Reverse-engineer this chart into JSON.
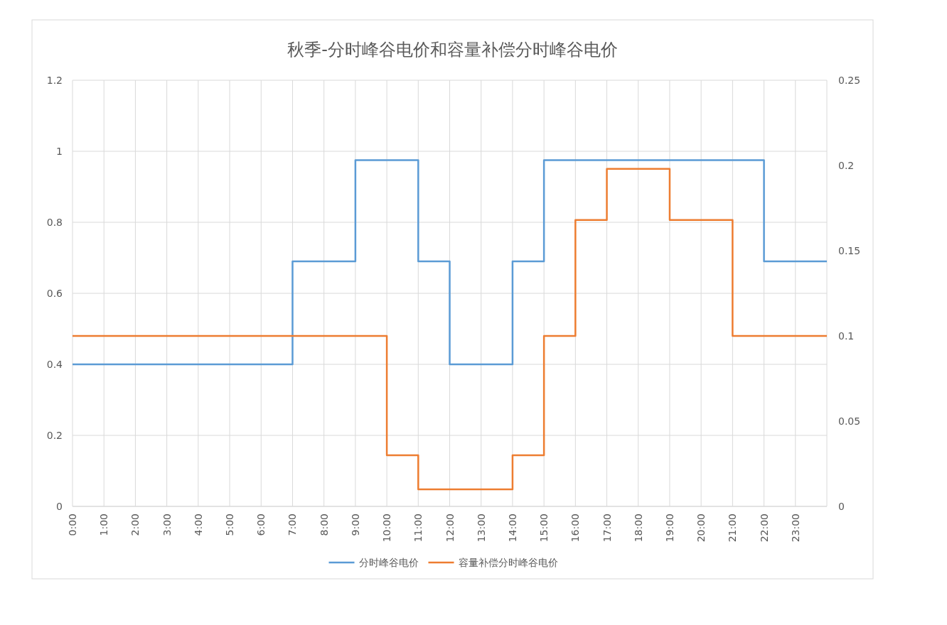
{
  "chart_data": {
    "type": "step",
    "title": "秋季-分时峰谷电价和容量补偿分时峰谷电价",
    "categories": [
      "0:00",
      "1:00",
      "2:00",
      "3:00",
      "4:00",
      "5:00",
      "6:00",
      "7:00",
      "8:00",
      "9:00",
      "10:00",
      "11:00",
      "12:00",
      "13:00",
      "14:00",
      "15:00",
      "16:00",
      "17:00",
      "18:00",
      "19:00",
      "20:00",
      "21:00",
      "22:00",
      "23:00",
      null
    ],
    "series": [
      {
        "name": "分时峰谷电价",
        "color": "#5b9bd5",
        "values": [
          0.4,
          0.4,
          0.4,
          0.4,
          0.4,
          0.4,
          0.4,
          0.69,
          0.69,
          0.975,
          0.975,
          0.69,
          0.4,
          0.4,
          0.69,
          0.975,
          0.975,
          0.975,
          0.975,
          0.975,
          0.975,
          0.975,
          0.69,
          0.69,
          0.69
        ]
      },
      {
        "name": "容量补偿分时峰谷电价",
        "color": "#ed7d31",
        "axis": "y2",
        "values": [
          0.1,
          0.1,
          0.1,
          0.1,
          0.1,
          0.1,
          0.1,
          0.1,
          0.1,
          0.1,
          0.03,
          0.01,
          0.01,
          0.01,
          0.03,
          0.1,
          0.168,
          0.198,
          0.198,
          0.168,
          0.168,
          0.1,
          0.1,
          0.1,
          0.1
        ]
      }
    ],
    "ylim": [
      0,
      1.2
    ],
    "yticks": [
      0,
      0.2,
      0.4,
      0.6,
      0.8,
      1,
      1.2
    ],
    "y2lim": [
      0,
      0.25
    ],
    "y2ticks": [
      0,
      0.05,
      0.1,
      0.15,
      0.2,
      0.25
    ],
    "grid": true,
    "legend": "bottom",
    "line_style": "solid"
  }
}
